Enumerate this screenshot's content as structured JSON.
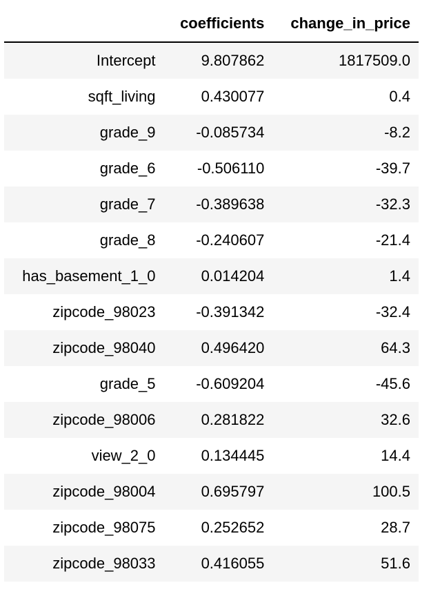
{
  "table": {
    "headers": [
      "",
      "coefficients",
      "change_in_price"
    ],
    "rows": [
      {
        "index": "Intercept",
        "coefficients": "9.807862",
        "change_in_price": "1817509.0"
      },
      {
        "index": "sqft_living",
        "coefficients": "0.430077",
        "change_in_price": "0.4"
      },
      {
        "index": "grade_9",
        "coefficients": "-0.085734",
        "change_in_price": "-8.2"
      },
      {
        "index": "grade_6",
        "coefficients": "-0.506110",
        "change_in_price": "-39.7"
      },
      {
        "index": "grade_7",
        "coefficients": "-0.389638",
        "change_in_price": "-32.3"
      },
      {
        "index": "grade_8",
        "coefficients": "-0.240607",
        "change_in_price": "-21.4"
      },
      {
        "index": "has_basement_1_0",
        "coefficients": "0.014204",
        "change_in_price": "1.4"
      },
      {
        "index": "zipcode_98023",
        "coefficients": "-0.391342",
        "change_in_price": "-32.4"
      },
      {
        "index": "zipcode_98040",
        "coefficients": "0.496420",
        "change_in_price": "64.3"
      },
      {
        "index": "grade_5",
        "coefficients": "-0.609204",
        "change_in_price": "-45.6"
      },
      {
        "index": "zipcode_98006",
        "coefficients": "0.281822",
        "change_in_price": "32.6"
      },
      {
        "index": "view_2_0",
        "coefficients": "0.134445",
        "change_in_price": "14.4"
      },
      {
        "index": "zipcode_98004",
        "coefficients": "0.695797",
        "change_in_price": "100.5"
      },
      {
        "index": "zipcode_98075",
        "coefficients": "0.252652",
        "change_in_price": "28.7"
      },
      {
        "index": "zipcode_98033",
        "coefficients": "0.416055",
        "change_in_price": "51.6"
      }
    ]
  },
  "colors": {
    "stripe": "#f5f5f5",
    "background": "#ffffff",
    "header_rule": "#000000"
  }
}
